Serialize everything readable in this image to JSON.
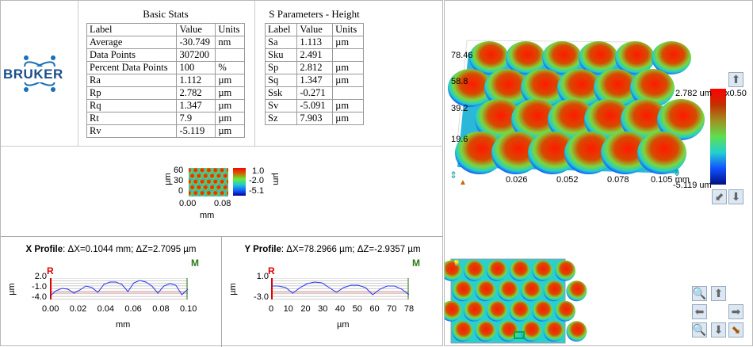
{
  "logo": {
    "text": "BRUKER"
  },
  "basic_stats": {
    "title": "Basic Stats",
    "headers": [
      "Label",
      "Value",
      "Units"
    ],
    "rows": [
      [
        "Average",
        "-30.749",
        "nm"
      ],
      [
        "Data Points",
        "307200",
        ""
      ],
      [
        "Percent Data Points",
        "100",
        "%"
      ],
      [
        "Ra",
        "1.112",
        "µm"
      ],
      [
        "Rp",
        "2.782",
        "µm"
      ],
      [
        "Rq",
        "1.347",
        "µm"
      ],
      [
        "Rt",
        "7.9",
        "µm"
      ],
      [
        "Rv",
        "-5.119",
        "µm"
      ]
    ]
  },
  "s_params": {
    "title": "S Parameters - Height",
    "headers": [
      "Label",
      "Value",
      "Units"
    ],
    "rows": [
      [
        "Sa",
        "1.113",
        "µm"
      ],
      [
        "Sku",
        "2.491",
        ""
      ],
      [
        "Sp",
        "2.812",
        "µm"
      ],
      [
        "Sq",
        "1.347",
        "µm"
      ],
      [
        "Ssk",
        "-0.271",
        ""
      ],
      [
        "Sv",
        "-5.091",
        "µm"
      ],
      [
        "Sz",
        "7.903",
        "µm"
      ]
    ]
  },
  "mini_map": {
    "y_label": "µm",
    "y_ticks": [
      "60",
      "30",
      "0"
    ],
    "x_ticks": [
      "0.00",
      "0.08"
    ],
    "x_label": "mm",
    "cb_ticks": [
      "1.0",
      "-2.0",
      "-5.1"
    ],
    "cb_label": "µm"
  },
  "x_profile": {
    "title": "X Profile",
    "info": ": ΔX=0.1044 mm; ΔZ=2.7095 µm",
    "r": "R",
    "m": "M",
    "y_label": "µm",
    "y_ticks": [
      "2.0",
      "-1.0",
      "-4.0"
    ],
    "x_ticks": [
      "0.00",
      "0.02",
      "0.04",
      "0.06",
      "0.08",
      "0.10"
    ],
    "x_label": "mm"
  },
  "y_profile": {
    "title": "Y Profile",
    "info": ": ΔX=78.2966 µm; ΔZ=-2.9357 µm",
    "r": "R",
    "m": "M",
    "y_label": "µm",
    "y_ticks": [
      "1.0",
      "-3.0"
    ],
    "x_ticks": [
      "0",
      "10",
      "20",
      "30",
      "40",
      "50",
      "60",
      "70",
      "78"
    ],
    "x_label": "µm"
  },
  "view3d": {
    "y_ticks": [
      "78.46",
      "58.8",
      "39.2",
      "19.6"
    ],
    "x_ticks": [
      "0.026",
      "0.052",
      "0.078",
      "0.105 mm"
    ],
    "cb_max": "2.782 um",
    "cb_min": "-5.119 um",
    "scale": "x0.50"
  },
  "colors": {
    "accent": "#1a6fb5",
    "profile": "#2233ee",
    "r_marker": "#e00000",
    "m_marker": "#2a7a1a"
  }
}
